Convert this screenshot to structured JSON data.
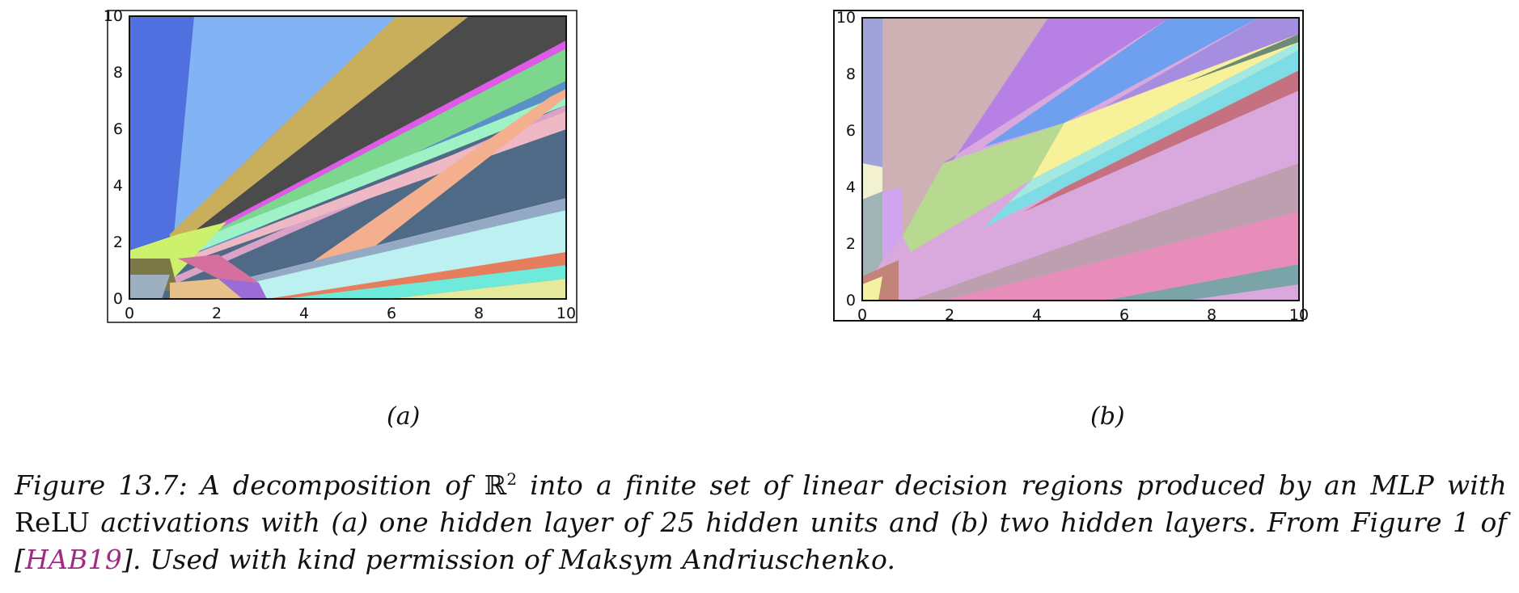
{
  "panels": [
    {
      "id": "a",
      "label": "(a)",
      "x_ticks": [
        "0",
        "2",
        "4",
        "6",
        "8",
        "10"
      ],
      "y_ticks": [
        "0",
        "2",
        "4",
        "6",
        "8",
        "10"
      ]
    },
    {
      "id": "b",
      "label": "(b)",
      "x_ticks": [
        "0",
        "2",
        "4",
        "6",
        "8",
        "10"
      ],
      "y_ticks": [
        "0",
        "2",
        "4",
        "6",
        "8",
        "10"
      ]
    }
  ],
  "caption": {
    "prefix": "Figure 13.7: A decomposition of ",
    "math_R": "ℝ",
    "math_exp": "2",
    "mid1": " into a finite set of linear decision regions produced by an MLP with ",
    "relu": "ReLU",
    "mid2": " activations with (a) one hidden layer of 25 hidden units and (b) two hidden layers. From Figure 1 of [",
    "ref": "HAB19",
    "suffix": "]. Used with kind permission of Maksym Andriuschenko."
  },
  "colors": {
    "reference_link": "#a02b83",
    "frame": "#111111"
  }
}
